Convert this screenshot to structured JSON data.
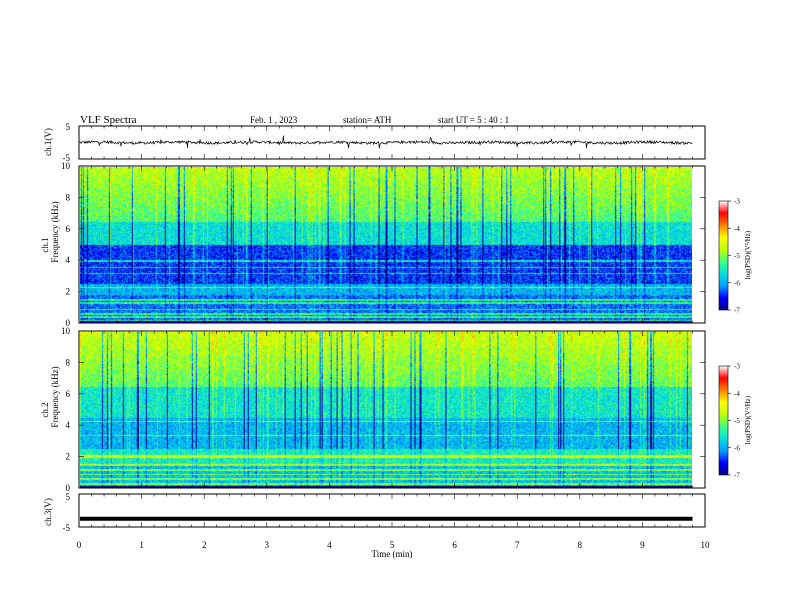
{
  "header": {
    "title": "VLF  Spectra",
    "date": "Feb. 1  , 2023",
    "station": "station= ATH",
    "start": "start  UT  =    5  : 40 : 1"
  },
  "colors": {
    "colormap": [
      "#000080",
      "#0000ff",
      "#00a0ff",
      "#00e0e0",
      "#40ff80",
      "#c0ff00",
      "#ffff00",
      "#ff8000",
      "#ff0000",
      "#ffffff"
    ],
    "trace": "#000000",
    "frame": "#000000"
  },
  "chart_data": [
    {
      "type": "line",
      "panel": "ch1-waveform",
      "ylabel": "ch.1(V)",
      "ylim": [
        -5,
        5
      ],
      "yticks": [
        "5",
        "-5"
      ],
      "xlim": [
        0,
        10
      ],
      "description_values": {
        "baseline": 0,
        "typical_amplitude": 0.5,
        "spike_max": 2
      }
    },
    {
      "type": "heatmap",
      "panel": "ch1-spectrogram",
      "ylabel": "ch.1\nFrequency  (kHz)",
      "ylabel_top": "ch.1",
      "ylabel_bottom": "Frequency  (kHz)",
      "ylim": [
        0,
        10
      ],
      "yticks": [
        "0",
        "2",
        "4",
        "6",
        "8",
        "10"
      ],
      "xlim": [
        0,
        9.8
      ],
      "colorbar": {
        "label": "log(PSD)(V²/Hz)",
        "range": [
          -7,
          -3
        ],
        "ticks": [
          "-3",
          "-4",
          "-5",
          "-6",
          "-7"
        ]
      }
    },
    {
      "type": "heatmap",
      "panel": "ch2-spectrogram",
      "ylabel_top": "ch.2",
      "ylabel_bottom": "Frequency  (kHz)",
      "ylim": [
        0,
        10
      ],
      "yticks": [
        "0",
        "2",
        "4",
        "6",
        "8",
        "10"
      ],
      "xlim": [
        0,
        9.8
      ],
      "colorbar": {
        "label": "log(PSD)(V²/Hz)",
        "range": [
          -7,
          -3
        ],
        "ticks": [
          "-3",
          "-4",
          "-5",
          "-6",
          "-7"
        ]
      }
    },
    {
      "type": "line",
      "panel": "ch3-waveform",
      "ylabel": "ch.3(V)",
      "ylim": [
        -5,
        5
      ],
      "yticks": [
        "5",
        "-5"
      ],
      "xlim": [
        0,
        10
      ],
      "description_values": {
        "baseline": -2.5
      }
    }
  ],
  "xaxis": {
    "label": "Time  (min)",
    "ticks": [
      "0",
      "1",
      "2",
      "3",
      "4",
      "5",
      "6",
      "7",
      "8",
      "9",
      "10"
    ],
    "xlim": [
      0,
      10
    ]
  }
}
